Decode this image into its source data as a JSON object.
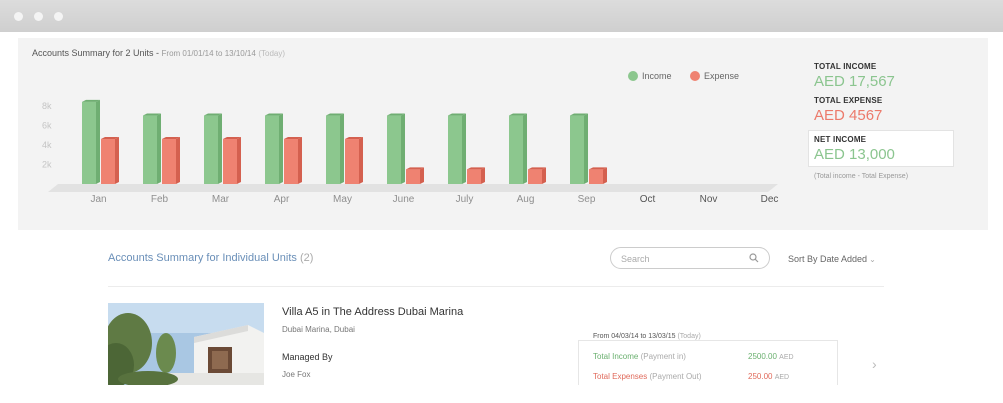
{
  "summary": {
    "title": "Accounts Summary for 2 Units",
    "separator": " - ",
    "range": "From 01/01/14 to 13/10/14",
    "today": "(Today)"
  },
  "legend": {
    "income": "Income",
    "expense": "Expense"
  },
  "chart_data": {
    "type": "bar",
    "categories": [
      "Jan",
      "Feb",
      "Mar",
      "Apr",
      "May",
      "June",
      "July",
      "Aug",
      "Sep",
      "Oct",
      "Nov",
      "Dec"
    ],
    "series": [
      {
        "name": "Income",
        "values": [
          8400,
          7000,
          7000,
          7000,
          7000,
          7000,
          7000,
          7000,
          7000,
          null,
          null,
          null
        ]
      },
      {
        "name": "Expense",
        "values": [
          4600,
          4600,
          4600,
          4600,
          4600,
          1500,
          1500,
          1500,
          1500,
          null,
          null,
          null
        ]
      }
    ],
    "yticks": [
      "2k",
      "4k",
      "6k",
      "8k"
    ],
    "ylim": [
      0,
      9000
    ],
    "legend_position": "top-right",
    "colors": {
      "income": "#8cc78e",
      "expense": "#ef8271"
    }
  },
  "totals": {
    "income_label": "TOTAL INCOME",
    "income_value": "AED 17,567",
    "expense_label": "TOTAL EXPENSE",
    "expense_value": "AED 4567",
    "net_label": "NET INCOME",
    "net_value": "AED 13,000",
    "note": "(Total income - Total Expense)"
  },
  "individual": {
    "title": "Accounts Summary for Individual Units",
    "count": "(2)",
    "search_placeholder": "Search",
    "sort_label": "Sort By Date Added"
  },
  "unit": {
    "name": "Villa A5 in The Address Dubai Marina",
    "location": "Dubai Marina, Dubai",
    "managed_label": "Managed By",
    "manager": "Joe Fox",
    "range": "From 04/03/14 to 13/03/15",
    "today": "(Today)",
    "income_label": "Total Income",
    "income_note": "(Payment in)",
    "income_value": "2500.00",
    "expense_label": "Total Expenses",
    "expense_note": "(Payment Out)",
    "expense_value": "250.00",
    "currency": "AED"
  }
}
